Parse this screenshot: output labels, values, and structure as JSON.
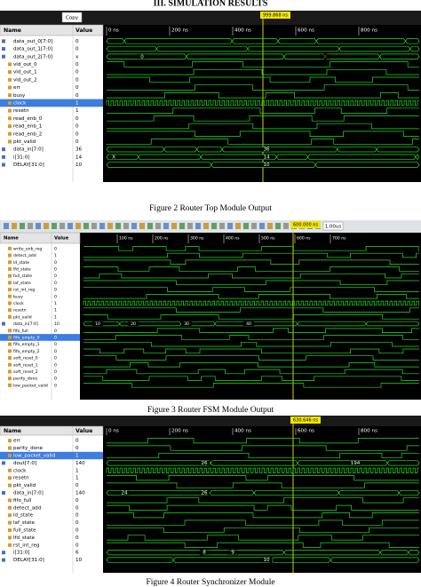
{
  "heading": "III. SIMULATION RESULTS",
  "figures": [
    {
      "caption": "Figure 2 Router Top Module Output",
      "button": "Copy",
      "marker": "999.868 ns",
      "columns": [
        "Name",
        "Value"
      ],
      "time_labels": [
        "0 ns",
        "200 ns",
        "400 ns",
        "600 ns",
        "800 ns"
      ],
      "signals": [
        {
          "name": "data_out_0[7:0]",
          "value": "0"
        },
        {
          "name": "data_out_1[7:0]",
          "value": "0"
        },
        {
          "name": "data_out_2[7:0]",
          "value": "x"
        },
        {
          "name": "vld_out_0",
          "value": "0"
        },
        {
          "name": "vld_out_1",
          "value": "0"
        },
        {
          "name": "vld_out_2",
          "value": "0"
        },
        {
          "name": "err",
          "value": "0"
        },
        {
          "name": "busy",
          "value": "0"
        },
        {
          "name": "clock",
          "value": "1"
        },
        {
          "name": "resetn",
          "value": "1"
        },
        {
          "name": "read_enb_0",
          "value": "0"
        },
        {
          "name": "read_enb_1",
          "value": "0"
        },
        {
          "name": "read_enb_2",
          "value": "0"
        },
        {
          "name": "pkt_valid",
          "value": "0"
        },
        {
          "name": "data_in[7:0]",
          "value": "36"
        },
        {
          "name": "i[31:0]",
          "value": "14"
        },
        {
          "name": "DELAY[31:0]",
          "value": "10"
        }
      ],
      "wave_labels": [
        "0",
        "X",
        "36",
        "X",
        "14",
        "10"
      ]
    },
    {
      "caption": "Figure 3 Router FSM Module Output",
      "button": "1.00us",
      "marker": "600.000 ns",
      "columns": [
        "Name",
        "Value"
      ],
      "time_labels": [
        "100 ns",
        "200 ns",
        "300 ns",
        "400 ns",
        "500 ns",
        "600 ns",
        "700 ns"
      ],
      "signals": [
        {
          "name": "write_enb_reg",
          "value": "0"
        },
        {
          "name": "detect_add",
          "value": "1"
        },
        {
          "name": "ld_state",
          "value": "0"
        },
        {
          "name": "lfd_state",
          "value": "0"
        },
        {
          "name": "full_state",
          "value": "0"
        },
        {
          "name": "laf_state",
          "value": "0"
        },
        {
          "name": "rst_int_reg",
          "value": "0"
        },
        {
          "name": "busy",
          "value": "0"
        },
        {
          "name": "clock",
          "value": "1"
        },
        {
          "name": "resetn",
          "value": "1"
        },
        {
          "name": "pkt_valid",
          "value": "1"
        },
        {
          "name": "data_in[7:0]",
          "value": "10"
        },
        {
          "name": "fifo_full",
          "value": "0"
        },
        {
          "name": "fifo_empty_0",
          "value": "0"
        },
        {
          "name": "fifo_empty_1",
          "value": "0"
        },
        {
          "name": "fifo_empty_2",
          "value": "0"
        },
        {
          "name": "soft_reset_0",
          "value": "0"
        },
        {
          "name": "soft_reset_1",
          "value": "0"
        },
        {
          "name": "soft_reset_2",
          "value": "0"
        },
        {
          "name": "parity_done",
          "value": "0"
        },
        {
          "name": "low_packet_valid",
          "value": "0"
        }
      ],
      "wave_labels": [
        "10",
        "20",
        "30",
        "40"
      ]
    },
    {
      "caption": "Figure 4  Router Synchronizer Module",
      "button": "",
      "marker": "630.646 ns",
      "columns": [
        "Name",
        "Value"
      ],
      "time_labels": [
        "0 ns",
        "200 ns",
        "400 ns",
        "600 ns",
        "800 ns"
      ],
      "signals": [
        {
          "name": "err",
          "value": "0"
        },
        {
          "name": "parity_done",
          "value": "0"
        },
        {
          "name": "low_packet_valid",
          "value": "1"
        },
        {
          "name": "dout[7:0]",
          "value": "140"
        },
        {
          "name": "clock",
          "value": "1"
        },
        {
          "name": "resetn",
          "value": "1"
        },
        {
          "name": "pkt_valid",
          "value": "0"
        },
        {
          "name": "data_in[7:0]",
          "value": "140"
        },
        {
          "name": "fifo_full",
          "value": "0"
        },
        {
          "name": "detect_add",
          "value": "0"
        },
        {
          "name": "ld_state",
          "value": "0"
        },
        {
          "name": "laf_state",
          "value": "0"
        },
        {
          "name": "full_state",
          "value": "0"
        },
        {
          "name": "lfd_state",
          "value": "0"
        },
        {
          "name": "rst_int_reg",
          "value": "0"
        },
        {
          "name": "i[31:0]",
          "value": "6"
        },
        {
          "name": "DELAY[31:0]",
          "value": "10"
        }
      ],
      "wave_labels": [
        "26",
        "194",
        "24",
        "26",
        "8",
        "9",
        "10"
      ]
    }
  ]
}
